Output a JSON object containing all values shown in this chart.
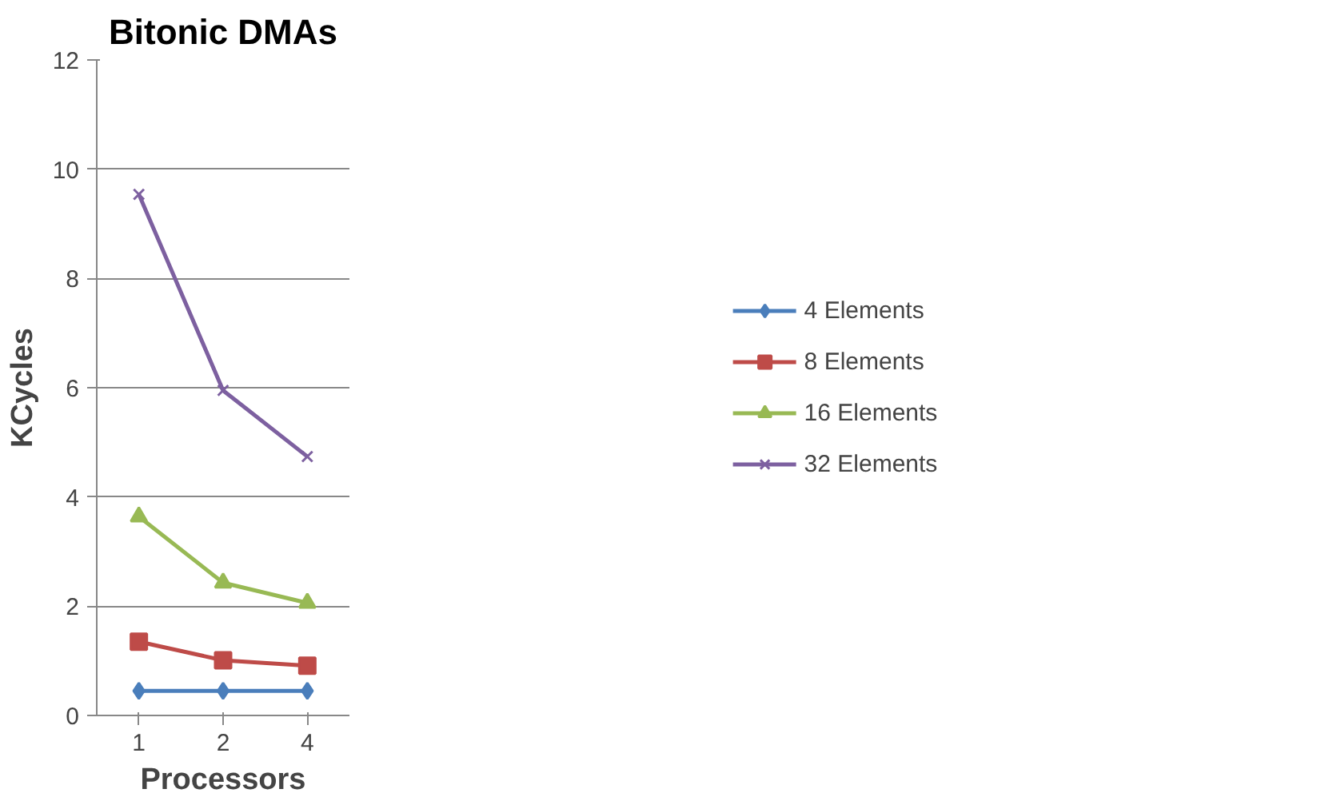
{
  "chart_data": {
    "type": "line",
    "title": "Bitonic DMAs",
    "xlabel": "Processors",
    "ylabel": "KCycles",
    "categories": [
      "1",
      "2",
      "4"
    ],
    "series": [
      {
        "name": "4 Elements",
        "color": "#4a7ebb",
        "marker": "diamond",
        "values": [
          0.45,
          0.45,
          0.45
        ]
      },
      {
        "name": "8 Elements",
        "color": "#be4b48",
        "marker": "square",
        "values": [
          1.35,
          1.01,
          0.91
        ]
      },
      {
        "name": "16 Elements",
        "color": "#98b954",
        "marker": "triangle",
        "values": [
          3.64,
          2.43,
          2.06
        ]
      },
      {
        "name": "32 Elements",
        "color": "#7d60a0",
        "marker": "x",
        "values": [
          9.54,
          5.95,
          4.74
        ]
      }
    ],
    "ylim": [
      0,
      12
    ],
    "yticks": [
      0,
      2,
      4,
      6,
      8,
      10,
      12
    ],
    "grid": "y",
    "legend": "right"
  }
}
